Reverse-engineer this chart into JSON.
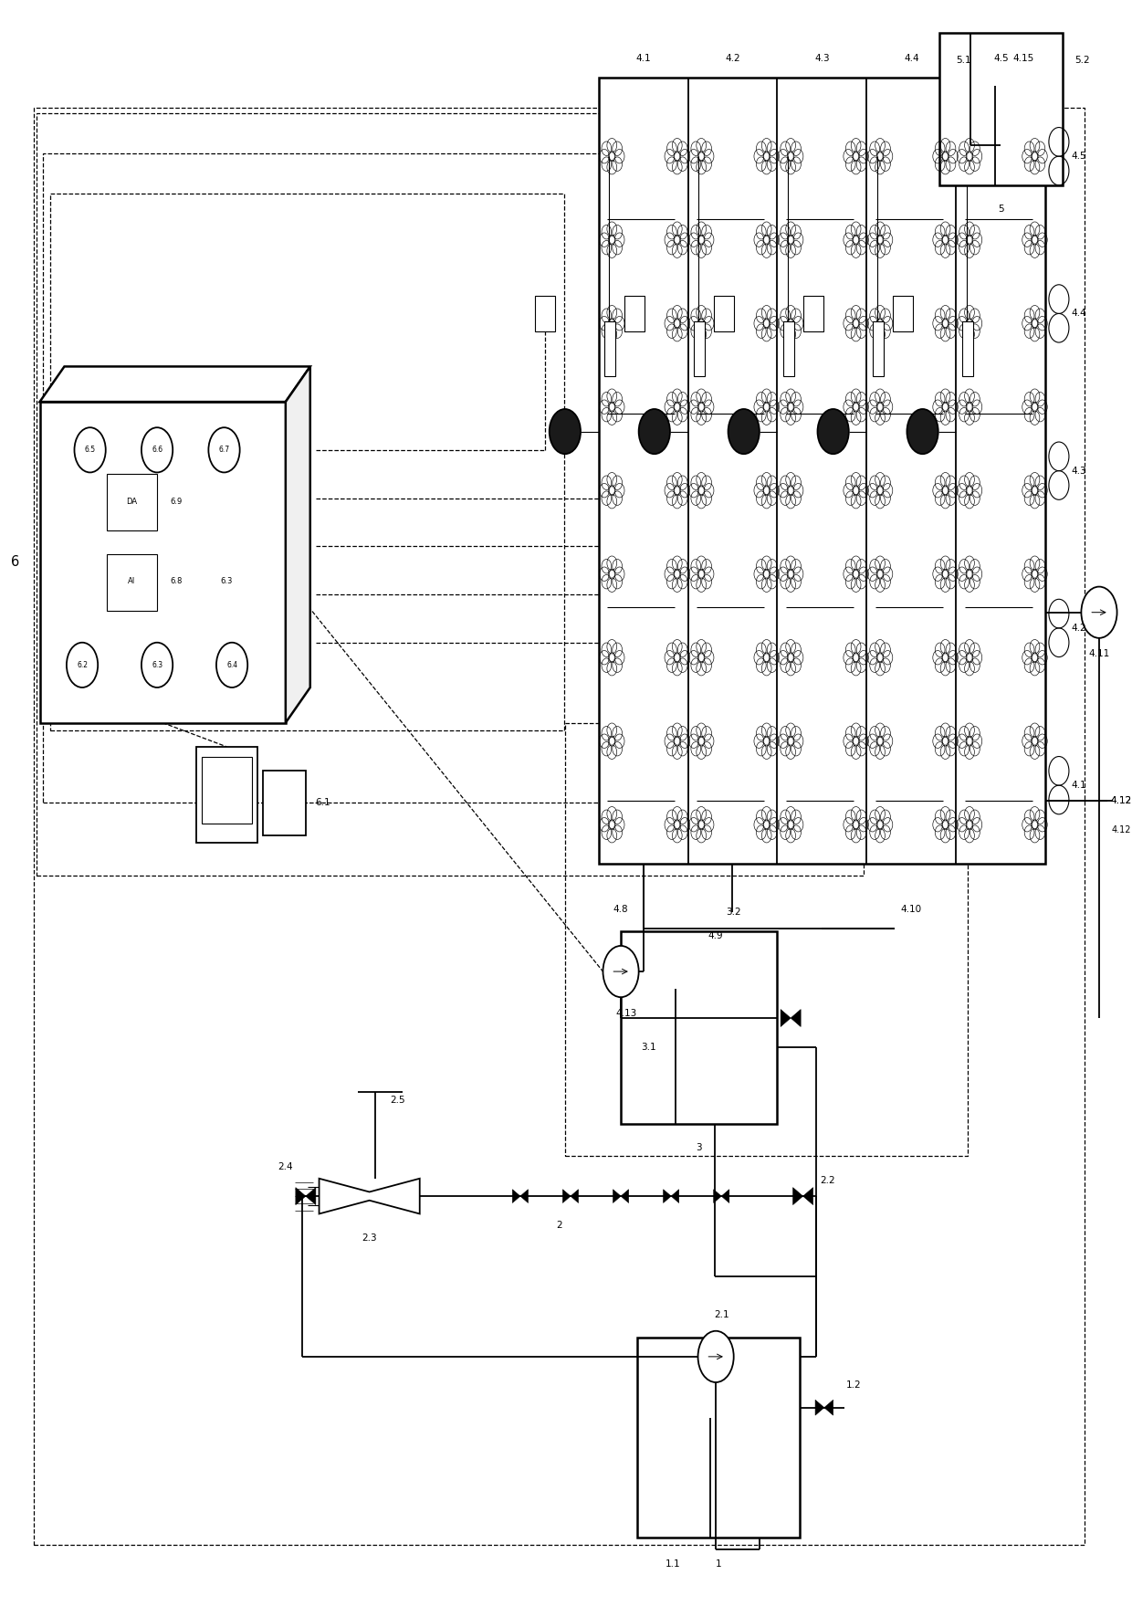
{
  "bg": "#ffffff",
  "lc": "#000000",
  "fig_w": 12.4,
  "fig_h": 17.59,
  "dpi": 100
}
